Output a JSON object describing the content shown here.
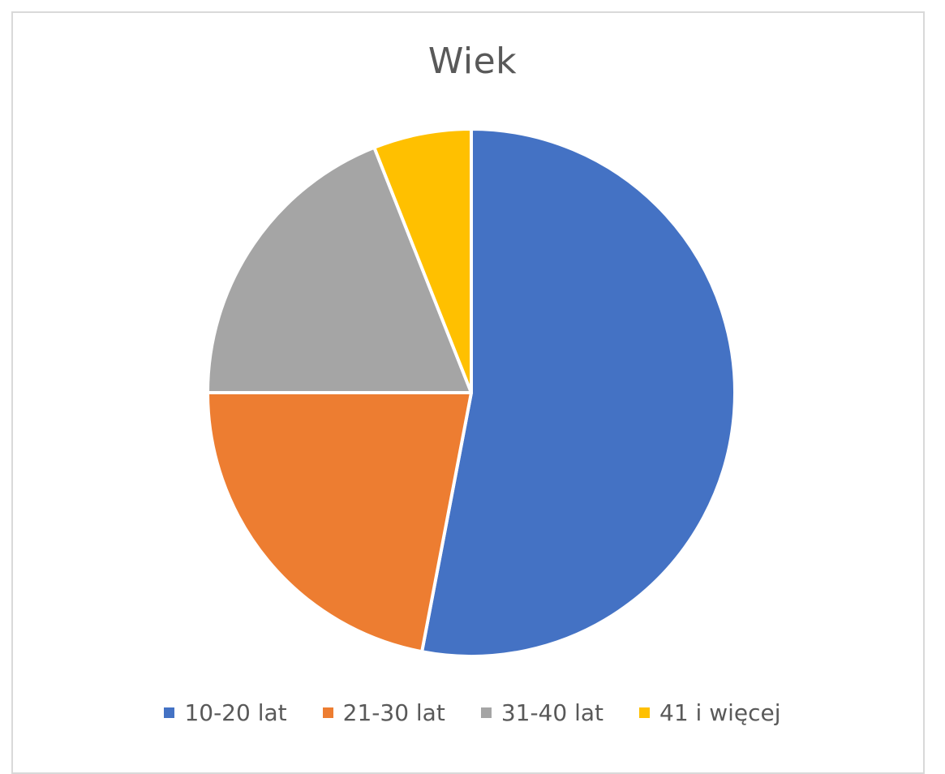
{
  "chart_data": {
    "type": "pie",
    "title": "Wiek",
    "categories": [
      "10-20 lat",
      "21-30 lat",
      "31-40 lat",
      "41 i więcej"
    ],
    "values": [
      53,
      22,
      19,
      6
    ],
    "colors": [
      "#4472c4",
      "#ed7d31",
      "#a5a5a5",
      "#ffc000"
    ],
    "legend": "bottom"
  }
}
